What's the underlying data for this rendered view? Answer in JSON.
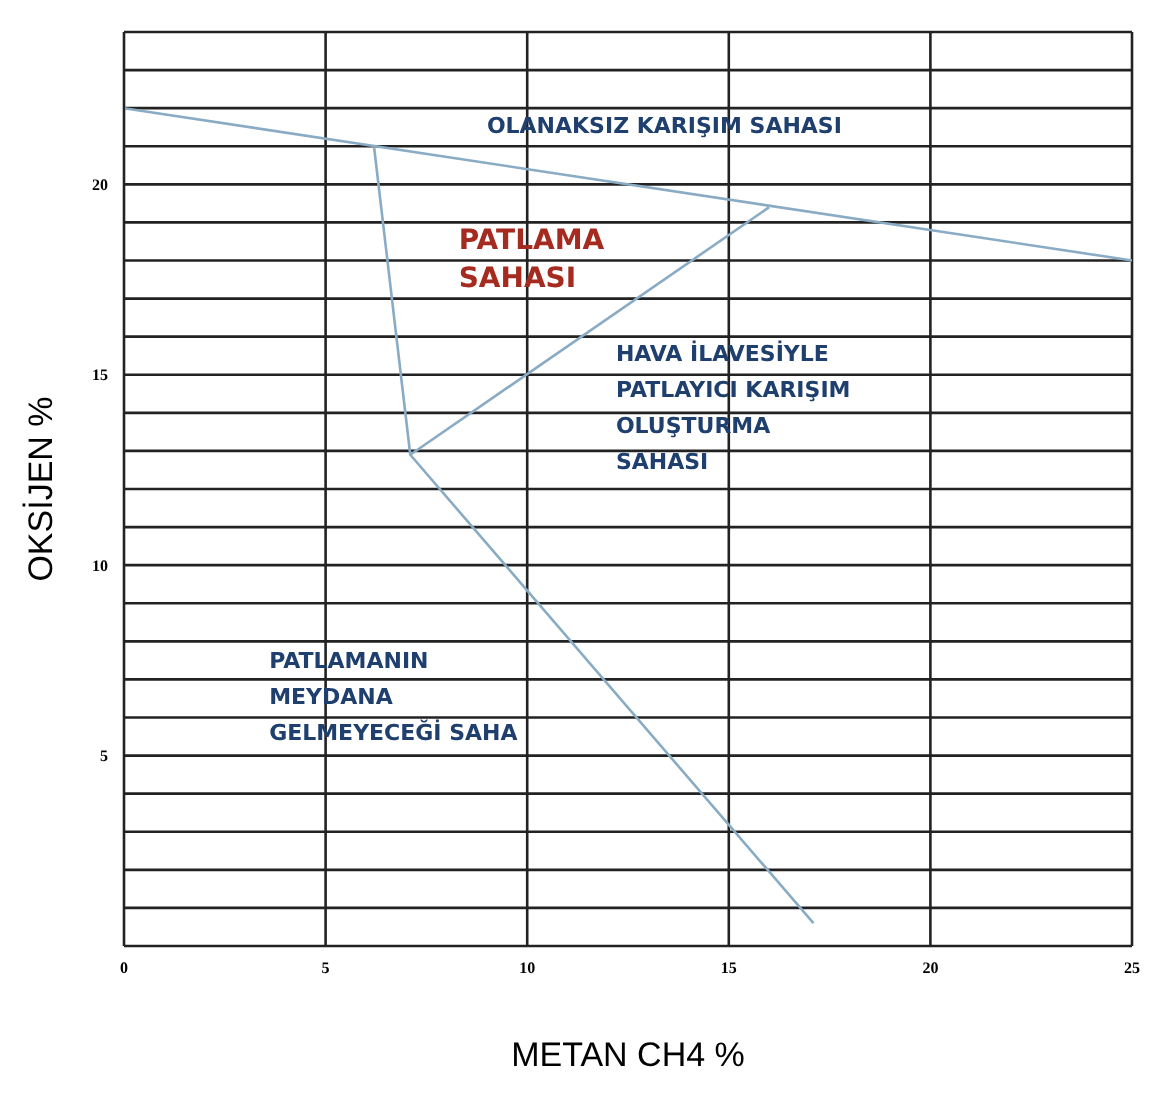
{
  "chart_data": {
    "type": "line",
    "xlabel": "METAN CH4   %",
    "ylabel": "OKSİJEN   %",
    "xlim": [
      0,
      25
    ],
    "xticks": [
      0,
      5,
      10,
      15,
      20,
      25
    ],
    "ylim": [
      0,
      24
    ],
    "yticks": [
      {
        "value": 0,
        "label": null
      },
      {
        "value": 1,
        "label": null
      },
      {
        "value": 2,
        "label": null
      },
      {
        "value": 3,
        "label": null
      },
      {
        "value": 4,
        "label": null
      },
      5,
      {
        "value": 6,
        "label": null
      },
      {
        "value": 7,
        "label": null
      },
      {
        "value": 8,
        "label": null
      },
      {
        "value": 9,
        "label": null
      },
      10,
      {
        "value": 11,
        "label": null
      },
      {
        "value": 12,
        "label": null
      },
      {
        "value": 13,
        "label": null
      },
      {
        "value": 14,
        "label": null
      },
      15,
      {
        "value": 16,
        "label": null
      },
      {
        "value": 17,
        "label": null
      },
      {
        "value": 18,
        "label": null
      },
      {
        "value": 19,
        "label": null
      },
      20,
      {
        "value": 21,
        "label": null
      },
      {
        "value": 22,
        "label": null
      },
      {
        "value": 23,
        "label": null
      },
      {
        "value": 24,
        "label": null
      }
    ],
    "grid": true,
    "marker": "none",
    "line_style": "solid",
    "series": [
      {
        "color": "#8aabc4",
        "x": [
          0,
          25
        ],
        "values": [
          22.0,
          18.0
        ]
      },
      {
        "color": "#8aabc4",
        "x": [
          6.2,
          7.1,
          17.1
        ],
        "values": [
          21.0,
          12.9,
          0.6
        ]
      },
      {
        "color": "#8aabc4",
        "x": [
          7.1,
          16.0
        ],
        "values": [
          12.9,
          19.4
        ]
      }
    ],
    "annotations": [
      "OLANAKSIZ KARIŞIM  SAHASI",
      "PATLAMA\nSAHASI",
      "HAVA İLAVESİYLE\nPATLAYICI KARIŞIM\nOLUŞTURMA\nSAHASI",
      "PATLAMANIN\nMEYDANA\nGELMEYECEĞİ SAHA"
    ]
  }
}
